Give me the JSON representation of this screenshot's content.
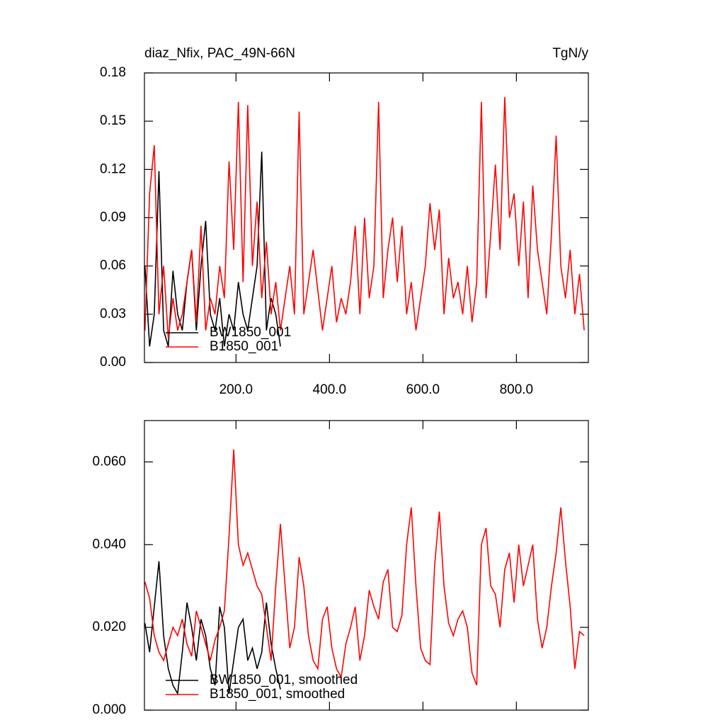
{
  "chart_data": [
    {
      "type": "line",
      "title": "diaz_Nfix, PAC_49N-66N",
      "units": "TgN/y",
      "legend": "lower left",
      "xlim": [
        4,
        954
      ],
      "ylim": [
        0,
        0.18
      ],
      "xticks": [
        {
          "value": 200,
          "label": "200.0"
        },
        {
          "value": 400,
          "label": "400.0"
        },
        {
          "value": 600,
          "label": "600.0"
        },
        {
          "value": 800,
          "label": "800.0"
        }
      ],
      "yticks": [
        {
          "value": 0,
          "label": "0.00"
        },
        {
          "value": 0.03,
          "label": "0.03"
        },
        {
          "value": 0.06,
          "label": "0.06"
        },
        {
          "value": 0.09,
          "label": "0.09"
        },
        {
          "value": 0.12,
          "label": "0.12"
        },
        {
          "value": 0.15,
          "label": "0.15"
        },
        {
          "value": 0.18,
          "label": "0.18"
        }
      ],
      "series": [
        {
          "name": "BW1850_001",
          "color": "#000000",
          "x": [
            5,
            15,
            25,
            35,
            45,
            55,
            65,
            75,
            85,
            95,
            105,
            115,
            125,
            135,
            145,
            155,
            165,
            175,
            185,
            195,
            205,
            215,
            225,
            235,
            245,
            255,
            265,
            275,
            285,
            295
          ],
          "values": [
            0.06,
            0.01,
            0.03,
            0.119,
            0.02,
            0.01,
            0.057,
            0.03,
            0.02,
            0.05,
            0.07,
            0.02,
            0.06,
            0.088,
            0.03,
            0.02,
            0.04,
            0.01,
            0.03,
            0.02,
            0.05,
            0.03,
            0.02,
            0.04,
            0.06,
            0.131,
            0.02,
            0.04,
            0.03,
            0.01
          ]
        },
        {
          "name": "B1850_001",
          "color": "#ff0000",
          "x": [
            5,
            15,
            25,
            35,
            45,
            55,
            65,
            75,
            85,
            95,
            105,
            115,
            125,
            135,
            145,
            155,
            165,
            175,
            185,
            195,
            205,
            215,
            225,
            235,
            245,
            255,
            265,
            275,
            285,
            295,
            305,
            315,
            325,
            335,
            345,
            355,
            365,
            375,
            385,
            395,
            405,
            415,
            425,
            435,
            445,
            455,
            465,
            475,
            485,
            495,
            505,
            515,
            525,
            535,
            545,
            555,
            565,
            575,
            585,
            595,
            605,
            615,
            625,
            635,
            645,
            655,
            665,
            675,
            685,
            695,
            705,
            715,
            725,
            735,
            745,
            755,
            765,
            775,
            785,
            795,
            805,
            815,
            825,
            835,
            845,
            855,
            865,
            875,
            885,
            895,
            905,
            915,
            925,
            935,
            945
          ],
          "values": [
            0.02,
            0.105,
            0.135,
            0.03,
            0.06,
            0.015,
            0.04,
            0.02,
            0.03,
            0.05,
            0.07,
            0.025,
            0.085,
            0.02,
            0.04,
            0.03,
            0.06,
            0.04,
            0.125,
            0.07,
            0.162,
            0.05,
            0.16,
            0.06,
            0.1,
            0.04,
            0.075,
            0.03,
            0.05,
            0.02,
            0.04,
            0.06,
            0.03,
            0.156,
            0.03,
            0.05,
            0.07,
            0.045,
            0.02,
            0.04,
            0.06,
            0.025,
            0.04,
            0.03,
            0.05,
            0.085,
            0.03,
            0.09,
            0.04,
            0.06,
            0.162,
            0.04,
            0.07,
            0.09,
            0.05,
            0.085,
            0.03,
            0.05,
            0.02,
            0.04,
            0.06,
            0.099,
            0.07,
            0.095,
            0.03,
            0.065,
            0.04,
            0.05,
            0.03,
            0.06,
            0.025,
            0.05,
            0.162,
            0.04,
            0.08,
            0.123,
            0.07,
            0.165,
            0.09,
            0.105,
            0.06,
            0.1,
            0.04,
            0.11,
            0.07,
            0.05,
            0.03,
            0.08,
            0.141,
            0.06,
            0.04,
            0.07,
            0.03,
            0.055,
            0.02
          ]
        }
      ]
    },
    {
      "type": "line",
      "legend": "lower left",
      "xlim": [
        4,
        954
      ],
      "ylim": [
        0,
        0.07
      ],
      "xticks": [
        200,
        400,
        600,
        800
      ],
      "yticks": [
        {
          "value": 0,
          "label": "0.000"
        },
        {
          "value": 0.02,
          "label": "0.020"
        },
        {
          "value": 0.04,
          "label": "0.040"
        },
        {
          "value": 0.06,
          "label": "0.060"
        }
      ],
      "series": [
        {
          "name": "BW1850_001, smoothed",
          "color": "#000000",
          "x": [
            5,
            15,
            25,
            35,
            45,
            55,
            65,
            75,
            85,
            95,
            105,
            115,
            125,
            135,
            145,
            155,
            165,
            175,
            185,
            195,
            205,
            215,
            225,
            235,
            245,
            255,
            265,
            275,
            285,
            295
          ],
          "values": [
            0.021,
            0.014,
            0.025,
            0.036,
            0.018,
            0.01,
            0.006,
            0.004,
            0.014,
            0.026,
            0.02,
            0.012,
            0.022,
            0.018,
            0.01,
            0.006,
            0.025,
            0.02,
            0.004,
            0.012,
            0.02,
            0.022,
            0.012,
            0.015,
            0.01,
            0.014,
            0.026,
            0.016,
            0.01,
            0.005
          ]
        },
        {
          "name": "B1850_001, smoothed",
          "color": "#ff0000",
          "x": [
            5,
            15,
            25,
            35,
            45,
            55,
            65,
            75,
            85,
            95,
            105,
            115,
            125,
            135,
            145,
            155,
            165,
            175,
            185,
            195,
            205,
            215,
            225,
            235,
            245,
            255,
            265,
            275,
            285,
            295,
            305,
            315,
            325,
            335,
            345,
            355,
            365,
            375,
            385,
            395,
            405,
            415,
            425,
            435,
            445,
            455,
            465,
            475,
            485,
            495,
            505,
            515,
            525,
            535,
            545,
            555,
            565,
            575,
            585,
            595,
            605,
            615,
            625,
            635,
            645,
            655,
            665,
            675,
            685,
            695,
            705,
            715,
            725,
            735,
            745,
            755,
            765,
            775,
            785,
            795,
            805,
            815,
            825,
            835,
            845,
            855,
            865,
            875,
            885,
            895,
            905,
            915,
            925,
            935,
            945
          ],
          "values": [
            0.031,
            0.027,
            0.018,
            0.014,
            0.012,
            0.016,
            0.02,
            0.018,
            0.022,
            0.016,
            0.013,
            0.024,
            0.02,
            0.016,
            0.012,
            0.017,
            0.02,
            0.024,
            0.042,
            0.063,
            0.04,
            0.035,
            0.038,
            0.034,
            0.03,
            0.028,
            0.02,
            0.012,
            0.03,
            0.045,
            0.03,
            0.015,
            0.02,
            0.037,
            0.03,
            0.018,
            0.012,
            0.01,
            0.022,
            0.025,
            0.015,
            0.01,
            0.008,
            0.016,
            0.02,
            0.025,
            0.012,
            0.018,
            0.029,
            0.025,
            0.022,
            0.031,
            0.034,
            0.02,
            0.019,
            0.023,
            0.04,
            0.049,
            0.03,
            0.015,
            0.012,
            0.011,
            0.035,
            0.048,
            0.03,
            0.021,
            0.018,
            0.022,
            0.024,
            0.02,
            0.009,
            0.006,
            0.04,
            0.044,
            0.03,
            0.028,
            0.02,
            0.034,
            0.038,
            0.026,
            0.04,
            0.03,
            0.035,
            0.04,
            0.022,
            0.015,
            0.02,
            0.03,
            0.038,
            0.049,
            0.036,
            0.025,
            0.01,
            0.019,
            0.018
          ]
        }
      ]
    }
  ]
}
